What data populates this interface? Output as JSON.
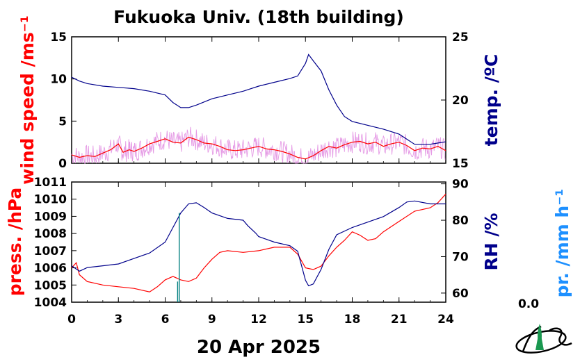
{
  "title": "Fukuoka Univ. (18th building)",
  "date_label": "20 Apr 2025",
  "rain_total": "0.0",
  "colors": {
    "wind": "#ff0000",
    "wind_raw": "#e59ae5",
    "temp": "#00008b",
    "pressure": "#ff0000",
    "rh": "#00008b",
    "precip": "#1e90ff",
    "rain_bar": "#008080",
    "logo": "#1a9850"
  },
  "chart_data": [
    {
      "type": "line",
      "panel": "upper",
      "xlim": [
        0,
        24
      ],
      "x_ticks": [
        "0",
        "3",
        "6",
        "9",
        "12",
        "15",
        "18",
        "21",
        "24"
      ],
      "left_axis": {
        "label": "wind speed /ms⁻¹",
        "ylim": [
          0,
          15
        ],
        "ticks": [
          "0",
          "5",
          "10",
          "15"
        ]
      },
      "right_axis": {
        "label": "temp. /ºC",
        "ylim": [
          15,
          25
        ],
        "ticks": [
          "15",
          "20",
          "25"
        ]
      },
      "series": [
        {
          "axis": "left",
          "points": [
            [
              0,
              1.0
            ],
            [
              0.5,
              0.7
            ],
            [
              1,
              0.9
            ],
            [
              1.5,
              0.8
            ],
            [
              2,
              1.2
            ],
            [
              2.5,
              1.6
            ],
            [
              3,
              2.3
            ],
            [
              3.3,
              1.3
            ],
            [
              3.7,
              1.6
            ],
            [
              4,
              1.4
            ],
            [
              4.5,
              1.8
            ],
            [
              5,
              2.3
            ],
            [
              5.5,
              2.6
            ],
            [
              6,
              2.9
            ],
            [
              6.5,
              2.5
            ],
            [
              7,
              2.4
            ],
            [
              7.5,
              3.1
            ],
            [
              8,
              2.8
            ],
            [
              8.5,
              2.4
            ],
            [
              9,
              2.3
            ],
            [
              9.5,
              2.0
            ],
            [
              10,
              1.6
            ],
            [
              10.5,
              1.5
            ],
            [
              11,
              1.6
            ],
            [
              11.5,
              1.8
            ],
            [
              12,
              2.0
            ],
            [
              12.5,
              1.7
            ],
            [
              13,
              1.6
            ],
            [
              13.5,
              1.4
            ],
            [
              14,
              1.1
            ],
            [
              14.5,
              0.7
            ],
            [
              15,
              0.5
            ],
            [
              15.5,
              0.9
            ],
            [
              16,
              1.5
            ],
            [
              16.5,
              2.0
            ],
            [
              17,
              1.8
            ],
            [
              17.5,
              2.2
            ],
            [
              18,
              2.5
            ],
            [
              18.5,
              2.6
            ],
            [
              19,
              2.3
            ],
            [
              19.5,
              2.5
            ],
            [
              20,
              2.0
            ],
            [
              20.5,
              2.3
            ],
            [
              21,
              2.5
            ],
            [
              21.5,
              2.1
            ],
            [
              22,
              1.5
            ],
            [
              22.5,
              1.8
            ],
            [
              23,
              1.7
            ],
            [
              23.5,
              2.0
            ],
            [
              24,
              1.5
            ]
          ]
        },
        {
          "axis": "right",
          "points": [
            [
              0,
              21.8
            ],
            [
              0.5,
              21.5
            ],
            [
              1,
              21.3
            ],
            [
              2,
              21.1
            ],
            [
              3,
              21.0
            ],
            [
              4,
              20.9
            ],
            [
              5,
              20.7
            ],
            [
              6,
              20.4
            ],
            [
              6.5,
              19.8
            ],
            [
              7,
              19.4
            ],
            [
              7.5,
              19.4
            ],
            [
              8,
              19.6
            ],
            [
              9,
              20.1
            ],
            [
              10,
              20.4
            ],
            [
              11,
              20.7
            ],
            [
              12,
              21.1
            ],
            [
              13,
              21.4
            ],
            [
              14,
              21.7
            ],
            [
              14.5,
              21.9
            ],
            [
              15,
              22.9
            ],
            [
              15.2,
              23.6
            ],
            [
              15.5,
              23.1
            ],
            [
              16,
              22.3
            ],
            [
              16.5,
              20.8
            ],
            [
              17,
              19.6
            ],
            [
              17.5,
              18.7
            ],
            [
              18,
              18.3
            ],
            [
              19,
              18.0
            ],
            [
              20,
              17.7
            ],
            [
              21,
              17.3
            ],
            [
              21.5,
              16.9
            ],
            [
              22,
              16.5
            ],
            [
              23,
              16.5
            ],
            [
              23.5,
              16.6
            ],
            [
              24,
              16.7
            ]
          ]
        }
      ]
    },
    {
      "type": "line",
      "panel": "lower",
      "xlabel": "20 Apr 2025",
      "xlim": [
        0,
        24
      ],
      "x_ticks": [
        "0",
        "3",
        "6",
        "9",
        "12",
        "15",
        "18",
        "21",
        "24"
      ],
      "left_axis": {
        "label": "press. /hPa",
        "ylim": [
          1004,
          1011
        ],
        "ticks": [
          "1004",
          "1005",
          "1006",
          "1007",
          "1008",
          "1009",
          "1010",
          "1011"
        ]
      },
      "right_axis": {
        "label": "RH /%",
        "ylim": [
          57.5,
          90.5
        ],
        "ticks": [
          "60",
          "70",
          "80",
          "90"
        ]
      },
      "extra_axis_label": "pr. /mm h⁻¹",
      "series": [
        {
          "axis": "left",
          "points": [
            [
              0,
              1006.0
            ],
            [
              0.3,
              1006.3
            ],
            [
              0.5,
              1005.6
            ],
            [
              1,
              1005.2
            ],
            [
              2,
              1005.0
            ],
            [
              3,
              1004.9
            ],
            [
              4,
              1004.8
            ],
            [
              5,
              1004.6
            ],
            [
              5.5,
              1004.9
            ],
            [
              6,
              1005.3
            ],
            [
              6.5,
              1005.5
            ],
            [
              7,
              1005.3
            ],
            [
              7.5,
              1005.2
            ],
            [
              8,
              1005.4
            ],
            [
              8.5,
              1006.0
            ],
            [
              9,
              1006.5
            ],
            [
              9.5,
              1006.9
            ],
            [
              10,
              1007.0
            ],
            [
              11,
              1006.9
            ],
            [
              12,
              1007.0
            ],
            [
              13,
              1007.2
            ],
            [
              14,
              1007.2
            ],
            [
              14.5,
              1006.8
            ],
            [
              15,
              1006.0
            ],
            [
              15.5,
              1005.9
            ],
            [
              16,
              1006.1
            ],
            [
              16.5,
              1006.7
            ],
            [
              17,
              1007.2
            ],
            [
              17.5,
              1007.6
            ],
            [
              18,
              1008.1
            ],
            [
              18.5,
              1007.9
            ],
            [
              19,
              1007.6
            ],
            [
              19.5,
              1007.7
            ],
            [
              20,
              1008.1
            ],
            [
              21,
              1008.7
            ],
            [
              22,
              1009.3
            ],
            [
              23,
              1009.5
            ],
            [
              23.5,
              1009.8
            ],
            [
              24,
              1010.3
            ]
          ]
        },
        {
          "axis": "right",
          "points": [
            [
              0,
              67.5
            ],
            [
              0.5,
              66.0
            ],
            [
              1,
              67.0
            ],
            [
              2,
              67.5
            ],
            [
              3,
              68.0
            ],
            [
              4,
              69.5
            ],
            [
              5,
              71.0
            ],
            [
              6,
              74.0
            ],
            [
              6.5,
              78.0
            ],
            [
              7,
              82.0
            ],
            [
              7.5,
              84.5
            ],
            [
              8,
              84.8
            ],
            [
              8.5,
              83.5
            ],
            [
              9,
              82.0
            ],
            [
              10,
              80.5
            ],
            [
              11,
              80.0
            ],
            [
              11.3,
              78.5
            ],
            [
              11.8,
              76.5
            ],
            [
              12,
              75.5
            ],
            [
              13,
              74.0
            ],
            [
              14,
              73.0
            ],
            [
              14.5,
              71.5
            ],
            [
              15,
              63.5
            ],
            [
              15.2,
              62.0
            ],
            [
              15.5,
              62.5
            ],
            [
              16,
              66.5
            ],
            [
              16.5,
              72.0
            ],
            [
              17,
              76.0
            ],
            [
              18,
              78.0
            ],
            [
              19,
              79.5
            ],
            [
              20,
              81.0
            ],
            [
              21,
              83.5
            ],
            [
              21.5,
              85.0
            ],
            [
              22,
              85.3
            ],
            [
              23,
              84.5
            ],
            [
              24,
              84.5
            ]
          ]
        },
        {
          "axis": "left",
          "kind": "spike",
          "points": [
            [
              6.9,
              1004.0
            ],
            [
              6.9,
              1009.2
            ]
          ]
        },
        {
          "axis": "left",
          "kind": "spike",
          "points": [
            [
              6.8,
              1004.0
            ],
            [
              6.8,
              1005.2
            ]
          ]
        }
      ]
    }
  ]
}
